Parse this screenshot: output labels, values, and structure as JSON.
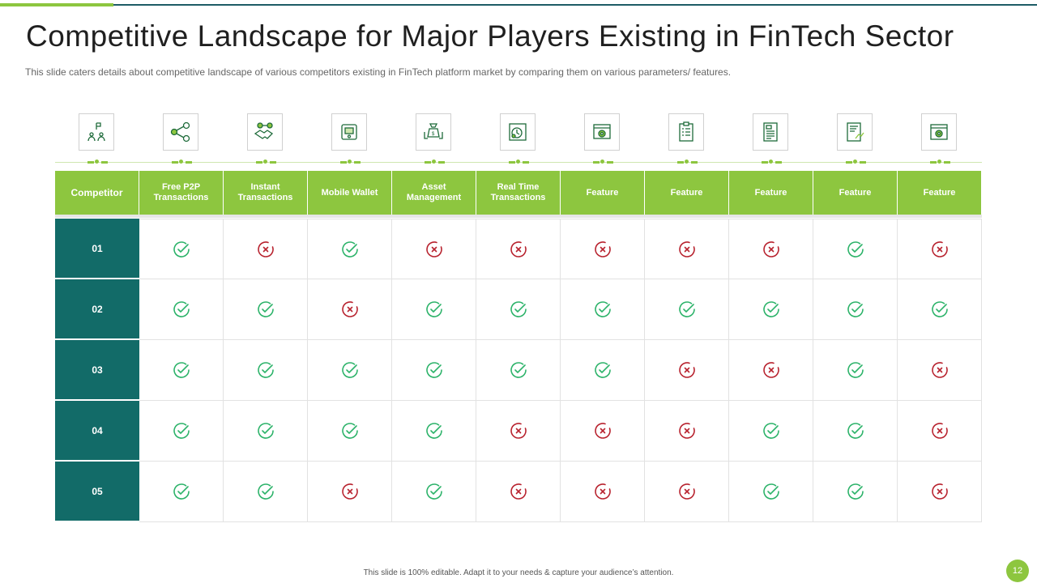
{
  "title": "Competitive Landscape for Major Players Existing in FinTech Sector",
  "subtitle": "This slide caters details about competitive landscape of various competitors existing in FinTech platform market by comparing them on various parameters/ features.",
  "colors": {
    "accent": "#8dc63f",
    "dark_teal": "#126b68",
    "check": "#2db36a",
    "cross": "#b8232f"
  },
  "icons": [
    "people-network-icon",
    "share-network-icon",
    "handshake-icon",
    "mobile-wallet-icon",
    "asset-management-icon",
    "real-time-icon",
    "browser-settings-icon",
    "checklist-icon",
    "document-icon",
    "report-icon",
    "web-gear-icon"
  ],
  "table": {
    "header_label": "Competitor",
    "columns": [
      "Free P2P Transactions",
      "Instant Transactions",
      "Mobile Wallet",
      "Asset Management",
      "Real Time Transactions",
      "Feature",
      "Feature",
      "Feature",
      "Feature",
      "Feature"
    ],
    "rows": [
      {
        "label": "01",
        "values": [
          "check",
          "cross",
          "check",
          "cross",
          "cross",
          "cross",
          "cross",
          "cross",
          "check",
          "cross"
        ]
      },
      {
        "label": "02",
        "values": [
          "check",
          "check",
          "cross",
          "check",
          "check",
          "check",
          "check",
          "check",
          "check",
          "check"
        ]
      },
      {
        "label": "03",
        "values": [
          "check",
          "check",
          "check",
          "check",
          "check",
          "check",
          "cross",
          "cross",
          "check",
          "cross"
        ]
      },
      {
        "label": "04",
        "values": [
          "check",
          "check",
          "check",
          "check",
          "cross",
          "cross",
          "cross",
          "check",
          "check",
          "cross"
        ]
      },
      {
        "label": "05",
        "values": [
          "check",
          "check",
          "cross",
          "check",
          "cross",
          "cross",
          "cross",
          "check",
          "check",
          "cross"
        ]
      }
    ]
  },
  "footer": "This slide is 100% editable. Adapt it to your needs & capture your audience’s attention.",
  "page_number": "12"
}
